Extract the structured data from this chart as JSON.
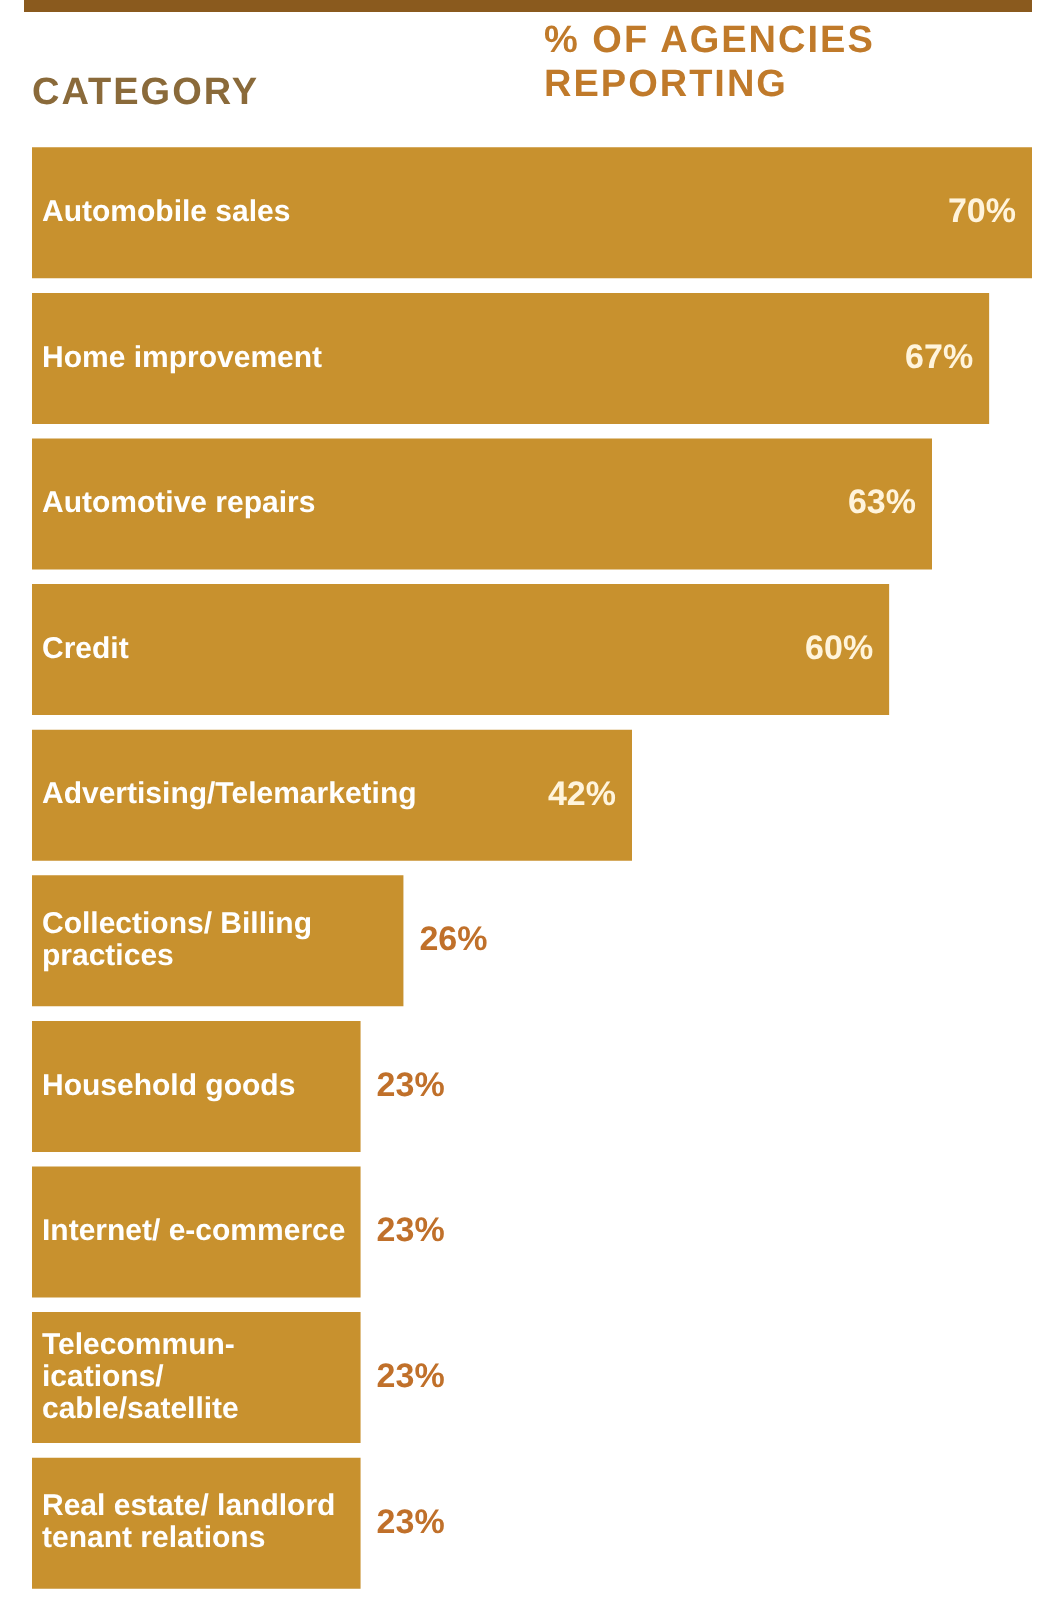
{
  "chart_data": {
    "type": "bar",
    "orientation": "horizontal",
    "ylabel": "CATEGORY",
    "xlabel": "% OF AGENCIES REPORTING",
    "categories": [
      "Automobile sales",
      "Home improvement",
      "Automotive repairs",
      "Credit",
      "Advertising/Telemarketing",
      "Collections/ Billing practices",
      "Household goods",
      "Internet/ e-commerce",
      "Telecommun- ications/ cable/satellite",
      "Real estate/ landlord tenant relations"
    ],
    "values": [
      70,
      67,
      63,
      60,
      42,
      26,
      23,
      23,
      23,
      23
    ],
    "value_labels": [
      "70%",
      "67%",
      "63%",
      "60%",
      "42%",
      "26%",
      "23%",
      "23%",
      "23%",
      "23%"
    ],
    "color": "#c8912e",
    "legend": false,
    "tick_labels": false
  }
}
